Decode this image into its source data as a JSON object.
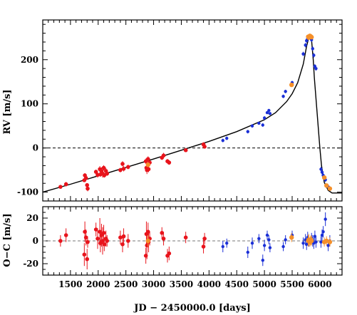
{
  "chart_data": [
    {
      "type": "scatter",
      "panel": "rv",
      "ylabel": "RV [m/s]",
      "xlabel": "",
      "xlim": [
        1000,
        6400
      ],
      "ylim": [
        -120,
        290
      ],
      "yticks": [
        -100,
        0,
        100,
        200
      ],
      "grid": false,
      "zero_line": {
        "y": 0,
        "style": "dashed"
      },
      "colors": {
        "red": "#e8141c",
        "blue": "#1a2fd6",
        "orange": "#f5902a",
        "model": "#000000"
      },
      "series": [
        {
          "color": "red",
          "points": [
            [
              1320,
              -88,
              4
            ],
            [
              1420,
              -82,
              5
            ],
            [
              1750,
              -73,
              4
            ],
            [
              1760,
              -62,
              5
            ],
            [
              1780,
              -68,
              5
            ],
            [
              1800,
              -84,
              4
            ],
            [
              1810,
              -92,
              6
            ],
            [
              1960,
              -54,
              5
            ],
            [
              1990,
              -61,
              6
            ],
            [
              2030,
              -48,
              7
            ],
            [
              2040,
              -60,
              5
            ],
            [
              2060,
              -52,
              8
            ],
            [
              2080,
              -58,
              9
            ],
            [
              2100,
              -45,
              6
            ],
            [
              2110,
              -62,
              5
            ],
            [
              2140,
              -52,
              7
            ],
            [
              2160,
              -58,
              5
            ],
            [
              2400,
              -50,
              5
            ],
            [
              2440,
              -36,
              6
            ],
            [
              2460,
              -47,
              6
            ],
            [
              2540,
              -43,
              5
            ],
            [
              2860,
              -30,
              6
            ],
            [
              2870,
              -45,
              8
            ],
            [
              2880,
              -50,
              9
            ],
            [
              2900,
              -25,
              6
            ],
            [
              2910,
              -48,
              7
            ],
            [
              2930,
              -33,
              5
            ],
            [
              3150,
              -22,
              5
            ],
            [
              3180,
              -17,
              6
            ],
            [
              3250,
              -30,
              5
            ],
            [
              3280,
              -33,
              5
            ],
            [
              3580,
              -5,
              4
            ],
            [
              3900,
              8,
              5
            ],
            [
              3920,
              3,
              4
            ]
          ]
        },
        {
          "color": "blue",
          "points": [
            [
              4250,
              17,
              4
            ],
            [
              4320,
              22,
              4
            ],
            [
              4700,
              37,
              4
            ],
            [
              4780,
              50,
              4
            ],
            [
              4900,
              56,
              3
            ],
            [
              4970,
              52,
              4
            ],
            [
              5000,
              68,
              4
            ],
            [
              5050,
              80,
              3
            ],
            [
              5080,
              85,
              3
            ],
            [
              5100,
              78,
              3
            ],
            [
              5340,
              117,
              4
            ],
            [
              5380,
              128,
              4
            ],
            [
              5500,
              148,
              4
            ],
            [
              5700,
              213,
              5
            ],
            [
              5740,
              233,
              5
            ],
            [
              5760,
              243,
              5
            ],
            [
              5780,
              248,
              5
            ],
            [
              5800,
              252,
              5
            ],
            [
              5850,
              245,
              5
            ],
            [
              5870,
              225,
              5
            ],
            [
              5890,
              210,
              5
            ],
            [
              5910,
              185,
              5
            ],
            [
              5930,
              180,
              5
            ],
            [
              6020,
              -48,
              5
            ],
            [
              6040,
              -55,
              5
            ],
            [
              6060,
              -62,
              5
            ],
            [
              6100,
              -72,
              5
            ],
            [
              6150,
              -88,
              5
            ],
            [
              6180,
              -92,
              5
            ]
          ]
        },
        {
          "color": "orange",
          "points": [
            [
              2900,
              -38,
              5
            ],
            [
              5490,
              143,
              4
            ],
            [
              5790,
              252,
              5
            ],
            [
              5800,
              250,
              5
            ],
            [
              5820,
              254,
              4
            ],
            [
              5830,
              253,
              4
            ],
            [
              5840,
              252,
              4
            ],
            [
              5850,
              251,
              4
            ],
            [
              6080,
              -67,
              4
            ],
            [
              6120,
              -85,
              4
            ],
            [
              6180,
              -92,
              4
            ]
          ]
        }
      ],
      "model_curve": [
        [
          1000,
          -100
        ],
        [
          1500,
          -82
        ],
        [
          2000,
          -63
        ],
        [
          2500,
          -44
        ],
        [
          3000,
          -25
        ],
        [
          3500,
          -5
        ],
        [
          4000,
          15
        ],
        [
          4500,
          37
        ],
        [
          5000,
          64
        ],
        [
          5200,
          80
        ],
        [
          5400,
          105
        ],
        [
          5500,
          123
        ],
        [
          5600,
          148
        ],
        [
          5700,
          190
        ],
        [
          5760,
          230
        ],
        [
          5800,
          250
        ],
        [
          5830,
          252
        ],
        [
          5850,
          245
        ],
        [
          5880,
          200
        ],
        [
          5900,
          160
        ],
        [
          5950,
          80
        ],
        [
          6000,
          0
        ],
        [
          6030,
          -40
        ],
        [
          6080,
          -78
        ],
        [
          6150,
          -96
        ],
        [
          6220,
          -102
        ],
        [
          6400,
          -102
        ]
      ]
    },
    {
      "type": "scatter",
      "panel": "residuals",
      "ylabel": "O−C [m/s]",
      "xlabel": "JD − 2450000.0 [days]",
      "xlim": [
        1000,
        6400
      ],
      "ylim": [
        -30,
        30
      ],
      "yticks": [
        -20,
        0,
        20
      ],
      "xticks": [
        1500,
        2000,
        2500,
        3000,
        3500,
        4000,
        4500,
        5000,
        5500,
        6000
      ],
      "grid": false,
      "zero_line": {
        "y": 0,
        "style": "dashed"
      },
      "series": [
        {
          "color": "red",
          "points": [
            [
              1320,
              0,
              5
            ],
            [
              1420,
              5,
              6
            ],
            [
              1750,
              -12,
              10
            ],
            [
              1760,
              8,
              9
            ],
            [
              1780,
              3,
              7
            ],
            [
              1800,
              -16,
              9
            ],
            [
              1810,
              -1,
              5
            ],
            [
              1960,
              10,
              6
            ],
            [
              1990,
              2,
              9
            ],
            [
              2030,
              8,
              12
            ],
            [
              2040,
              -2,
              8
            ],
            [
              2060,
              5,
              10
            ],
            [
              2080,
              0,
              12
            ],
            [
              2100,
              7,
              7
            ],
            [
              2110,
              -3,
              6
            ],
            [
              2140,
              2,
              7
            ],
            [
              2160,
              0,
              5
            ],
            [
              2400,
              3,
              6
            ],
            [
              2440,
              -3,
              7
            ],
            [
              2460,
              4,
              7
            ],
            [
              2540,
              0,
              6
            ],
            [
              2860,
              -13,
              7
            ],
            [
              2870,
              6,
              11
            ],
            [
              2880,
              -4,
              12
            ],
            [
              2900,
              8,
              8
            ],
            [
              2910,
              -1,
              9
            ],
            [
              2930,
              2,
              6
            ],
            [
              3150,
              7,
              5
            ],
            [
              3180,
              2,
              6
            ],
            [
              3250,
              -13,
              6
            ],
            [
              3280,
              -11,
              6
            ],
            [
              3580,
              3,
              5
            ],
            [
              3900,
              -5,
              6
            ],
            [
              3920,
              2,
              5
            ]
          ]
        },
        {
          "color": "blue",
          "points": [
            [
              4250,
              -5,
              5
            ],
            [
              4320,
              -2,
              4
            ],
            [
              4700,
              -10,
              5
            ],
            [
              4780,
              -2,
              5
            ],
            [
              4900,
              2,
              4
            ],
            [
              4970,
              -17,
              5
            ],
            [
              5000,
              -4,
              5
            ],
            [
              5050,
              5,
              4
            ],
            [
              5080,
              1,
              4
            ],
            [
              5100,
              -6,
              4
            ],
            [
              5340,
              -5,
              4
            ],
            [
              5380,
              1,
              4
            ],
            [
              5500,
              5,
              4
            ],
            [
              5700,
              -2,
              5
            ],
            [
              5740,
              1,
              5
            ],
            [
              5760,
              -3,
              5
            ],
            [
              5780,
              3,
              5
            ],
            [
              5800,
              0,
              5
            ],
            [
              5850,
              2,
              5
            ],
            [
              5870,
              0,
              5
            ],
            [
              5890,
              -2,
              5
            ],
            [
              5910,
              4,
              5
            ],
            [
              5930,
              -1,
              5
            ],
            [
              6020,
              -1,
              5
            ],
            [
              6040,
              5,
              5
            ],
            [
              6060,
              8,
              5
            ],
            [
              6100,
              19,
              6
            ],
            [
              6150,
              -4,
              5
            ],
            [
              6180,
              0,
              5
            ]
          ]
        },
        {
          "color": "orange",
          "points": [
            [
              2900,
              0,
              5
            ],
            [
              5490,
              3,
              4
            ],
            [
              5790,
              0,
              5
            ],
            [
              5800,
              1,
              5
            ],
            [
              5820,
              -1,
              4
            ],
            [
              5830,
              0,
              4
            ],
            [
              5840,
              1,
              4
            ],
            [
              5850,
              0,
              4
            ],
            [
              6080,
              -1,
              4
            ],
            [
              6120,
              0,
              4
            ],
            [
              6180,
              -1,
              4
            ]
          ]
        }
      ]
    }
  ]
}
